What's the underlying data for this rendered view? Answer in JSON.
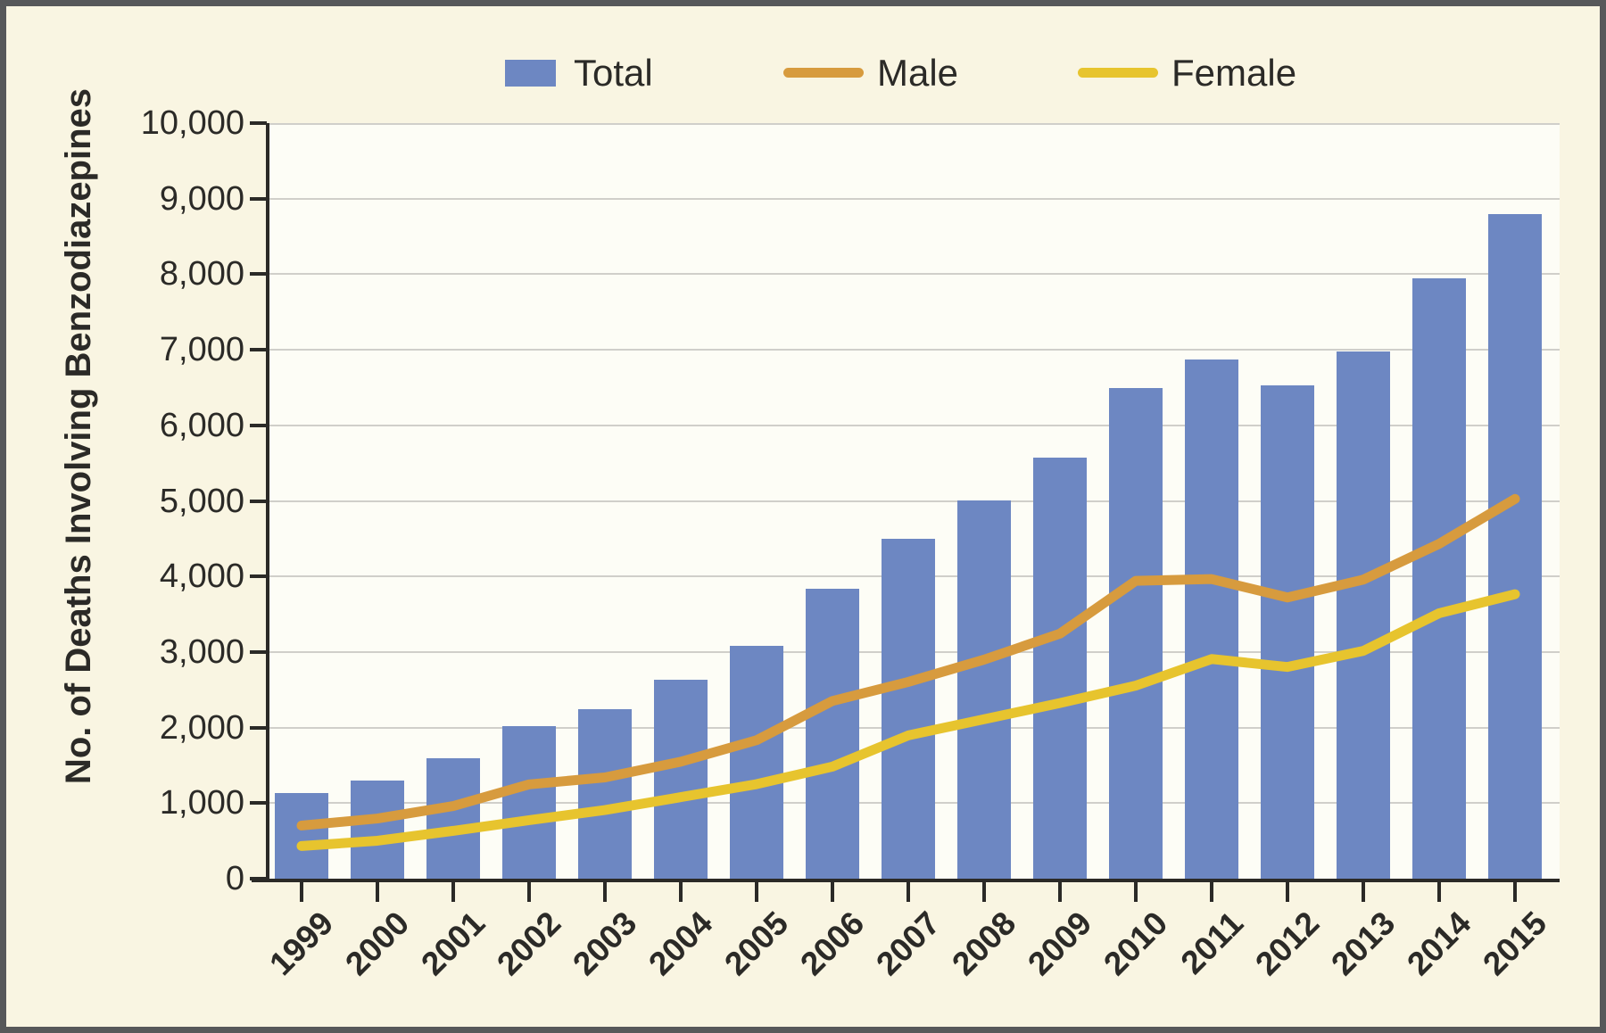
{
  "chart_data": {
    "type": "bar",
    "title": "",
    "xlabel": "",
    "ylabel": "No. of Deaths Involving Benzodiazepines",
    "ylim": [
      0,
      10000
    ],
    "ytick_interval": 1000,
    "ytick_labels": [
      "0",
      "1,000",
      "2,000",
      "3,000",
      "4,000",
      "5,000",
      "6,000",
      "7,000",
      "8,000",
      "9,000",
      "10,000"
    ],
    "categories": [
      "1999",
      "2000",
      "2001",
      "2002",
      "2003",
      "2004",
      "2005",
      "2006",
      "2007",
      "2008",
      "2009",
      "2010",
      "2011",
      "2012",
      "2013",
      "2014",
      "2015"
    ],
    "grid": "horizontal",
    "legend_position": "top",
    "series": [
      {
        "name": "Total",
        "type": "bar",
        "color": "#6d87c2",
        "values": [
          1135,
          1298,
          1594,
          2022,
          2248,
          2627,
          3084,
          3835,
          4500,
          5010,
          5567,
          6497,
          6872,
          6524,
          6973,
          7945,
          8791
        ]
      },
      {
        "name": "Male",
        "type": "line",
        "color": "#d79b3e",
        "values": [
          703,
          796,
          961,
          1248,
          1340,
          1548,
          1833,
          2352,
          2604,
          2899,
          3243,
          3942,
          3965,
          3722,
          3958,
          4432,
          5026
        ]
      },
      {
        "name": "Female",
        "type": "line",
        "color": "#e7c42e",
        "values": [
          432,
          502,
          633,
          774,
          908,
          1079,
          1251,
          1483,
          1896,
          2111,
          2324,
          2555,
          2907,
          2802,
          3015,
          3513,
          3765
        ]
      }
    ],
    "colors": {
      "background": "#f9f5e2",
      "plot_background": "#fdfdf6",
      "gridline": "#d0cfca",
      "axis": "#2b2a27",
      "frame_border": "#57585a"
    }
  }
}
